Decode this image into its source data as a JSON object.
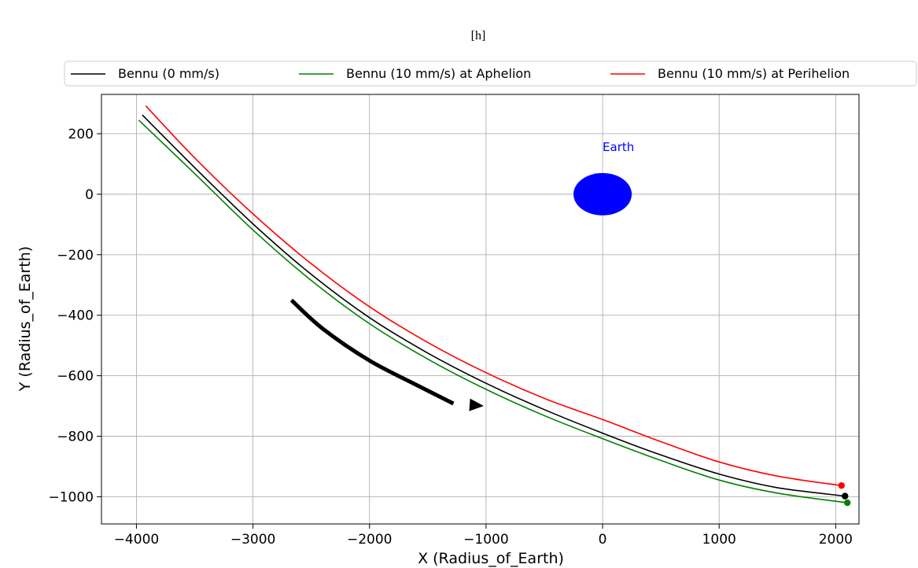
{
  "caption": "[h]",
  "chart_data": {
    "type": "line",
    "xlabel": "X (Radius_of_Earth)",
    "ylabel": "Y (Radius_of_Earth)",
    "xlim": [
      -4300,
      2200
    ],
    "ylim": [
      -1090,
      330
    ],
    "x_ticks": [
      -4000,
      -3000,
      -2000,
      -1000,
      0,
      1000,
      2000
    ],
    "x_tick_labels": [
      "−4000",
      "−3000",
      "−2000",
      "−1000",
      "0",
      "1000",
      "2000"
    ],
    "y_ticks": [
      200,
      0,
      -200,
      -400,
      -600,
      -800,
      -1000
    ],
    "y_tick_labels": [
      "200",
      "0",
      "−200",
      "−400",
      "−600",
      "−800",
      "−1000"
    ],
    "grid": true,
    "legend_position": "top, above plot",
    "series": [
      {
        "name": "Bennu (0 mm/s)",
        "color": "#000000",
        "x": [
          -3950,
          -3500,
          -3000,
          -2500,
          -2000,
          -1500,
          -1000,
          -500,
          0,
          500,
          1000,
          1500,
          2080
        ],
        "y": [
          262,
          88,
          -98,
          -265,
          -408,
          -525,
          -625,
          -712,
          -790,
          -862,
          -925,
          -970,
          -998
        ],
        "end_marker": true
      },
      {
        "name": "Bennu (10 mm/s) at Aphelion",
        "color": "#008000",
        "x": [
          -3980,
          -3500,
          -3000,
          -2500,
          -2000,
          -1500,
          -1000,
          -500,
          0,
          500,
          1000,
          1500,
          2100
        ],
        "y": [
          245,
          68,
          -118,
          -285,
          -428,
          -545,
          -645,
          -732,
          -808,
          -880,
          -945,
          -988,
          -1020
        ],
        "end_marker": true
      },
      {
        "name": "Bennu (10 mm/s) at Perihelion",
        "color": "#ff0000",
        "x": [
          -3920,
          -3500,
          -3000,
          -2500,
          -2000,
          -1500,
          -1000,
          -500,
          0,
          500,
          1000,
          1500,
          2050
        ],
        "y": [
          292,
          120,
          -65,
          -230,
          -372,
          -490,
          -590,
          -675,
          -745,
          -818,
          -885,
          -932,
          -963
        ],
        "end_marker": true
      }
    ],
    "earth": {
      "label": "Earth",
      "x": 0,
      "y": 0,
      "rx": 250,
      "ry": 70,
      "color": "#0000ff"
    },
    "direction_arrow": {
      "x": [
        -2670,
        -2400,
        -2000,
        -1600,
        -1280
      ],
      "y": [
        -350,
        -445,
        -550,
        -630,
        -692
      ],
      "color": "#000000"
    }
  }
}
